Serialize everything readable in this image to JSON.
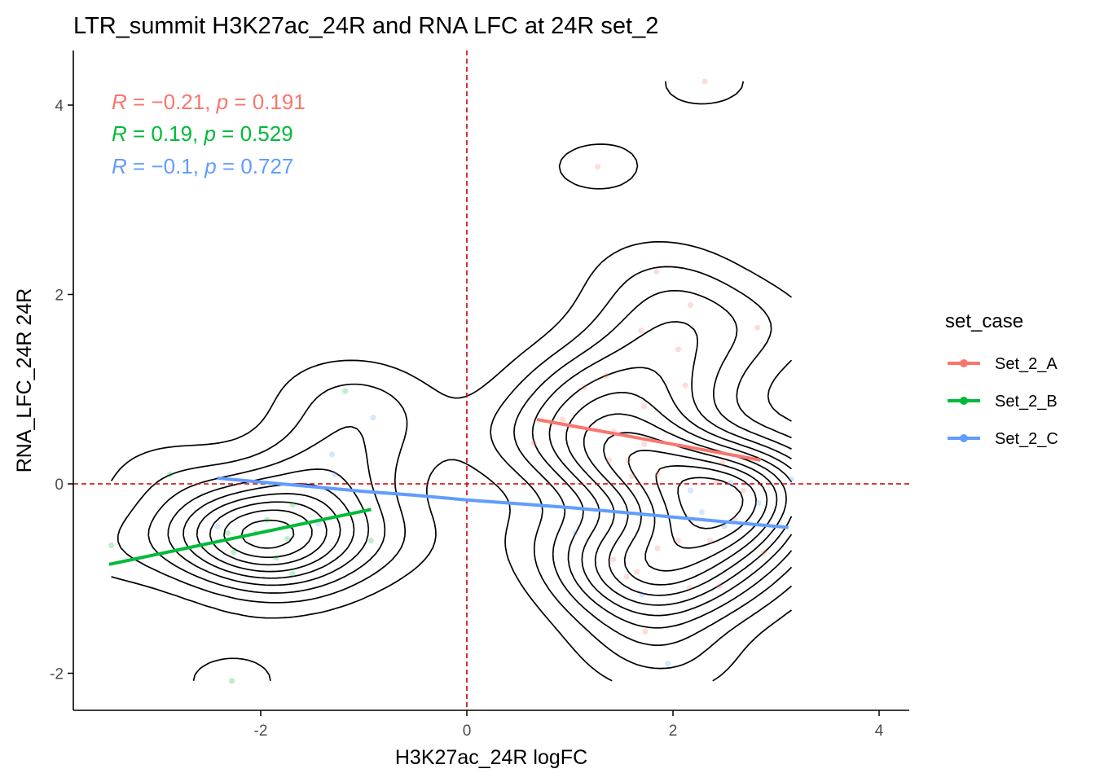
{
  "chart_data": {
    "type": "scatter",
    "title": "LTR_summit H3K27ac_24R and RNA LFC at 24R set_2",
    "xlabel": "H3K27ac_24R logFC",
    "ylabel": "RNA_LFC_24R 24R",
    "xlim": [
      -3.55,
      4.3
    ],
    "ylim": [
      -2.4,
      4.6
    ],
    "xticks": [
      -2,
      0,
      2,
      4
    ],
    "yticks": [
      -2,
      0,
      2,
      4
    ],
    "grid": false,
    "reference_lines": {
      "x": 0,
      "y": 0,
      "color": "#cc0000",
      "style": "dashed"
    },
    "legend": {
      "title": "set_case",
      "position": "right",
      "keys": [
        "Set_2_A",
        "Set_2_B",
        "Set_2_C"
      ]
    },
    "series": [
      {
        "name": "Set_2_A",
        "color": "#F8766D",
        "stats": {
          "R": "−0.21",
          "p": "0.191"
        },
        "fit_line": {
          "x": [
            0.68,
            2.85
          ],
          "y": [
            0.68,
            0.25
          ]
        },
        "points": [
          [
            2.31,
            4.25
          ],
          [
            1.27,
            3.35
          ],
          [
            1.84,
            2.24
          ],
          [
            2.17,
            1.89
          ],
          [
            1.69,
            1.62
          ],
          [
            2.82,
            1.65
          ],
          [
            2.05,
            1.42
          ],
          [
            1.35,
            1.14
          ],
          [
            1.14,
            1.02
          ],
          [
            1.72,
            0.82
          ],
          [
            2.12,
            1.04
          ],
          [
            0.93,
            0.68
          ],
          [
            0.65,
            0.43
          ],
          [
            1.43,
            0.55
          ],
          [
            1.72,
            0.42
          ],
          [
            1.57,
            0.25
          ],
          [
            1.38,
            0.25
          ],
          [
            1.6,
            0.08
          ],
          [
            1.85,
            0.1
          ],
          [
            2.48,
            0.22
          ],
          [
            2.42,
            0.02
          ],
          [
            2.68,
            -0.07
          ],
          [
            2.6,
            -0.38
          ],
          [
            2.36,
            -0.6
          ],
          [
            1.85,
            -0.68
          ],
          [
            2.05,
            -0.6
          ],
          [
            1.42,
            -0.8
          ],
          [
            1.55,
            -0.98
          ],
          [
            2.16,
            -1.1
          ],
          [
            2.45,
            -1.08
          ],
          [
            2.88,
            -0.73
          ],
          [
            1.73,
            -1.56
          ],
          [
            1.65,
            -0.93
          ]
        ]
      },
      {
        "name": "Set_2_B",
        "color": "#00BA38",
        "stats": {
          "R": "0.19",
          "p": "0.529"
        },
        "fit_line": {
          "x": [
            -3.47,
            -0.93
          ],
          "y": [
            -0.85,
            -0.27
          ]
        },
        "points": [
          [
            -1.18,
            0.98
          ],
          [
            -2.88,
            0.1
          ],
          [
            -3.45,
            -0.65
          ],
          [
            -2.32,
            -0.52
          ],
          [
            -1.69,
            -0.22
          ],
          [
            -1.94,
            -0.38
          ],
          [
            -1.74,
            -0.58
          ],
          [
            -0.93,
            -0.6
          ],
          [
            -2.26,
            -0.72
          ],
          [
            -1.85,
            -0.78
          ],
          [
            -1.69,
            -0.95
          ],
          [
            -2.28,
            -2.08
          ],
          [
            -2.05,
            -0.52
          ]
        ]
      },
      {
        "name": "Set_2_C",
        "color": "#619CFF",
        "stats": {
          "R": "−0.1",
          "p": "0.727"
        },
        "fit_line": {
          "x": [
            -2.42,
            -2.0,
            -1.5,
            -1.0,
            -0.5,
            0.0,
            0.5,
            1.0,
            1.5,
            2.0,
            2.5,
            3.12
          ],
          "y": [
            0.06,
            0.02,
            -0.03,
            -0.08,
            -0.12,
            -0.17,
            -0.21,
            -0.25,
            -0.3,
            -0.35,
            -0.4,
            -0.46
          ]
        },
        "points": [
          [
            -0.91,
            0.7
          ],
          [
            -1.31,
            0.31
          ],
          [
            -1.28,
            0.1
          ],
          [
            -2.42,
            -0.45
          ],
          [
            -1.44,
            -0.42
          ],
          [
            2.17,
            -0.07
          ],
          [
            2.56,
            0.01
          ],
          [
            2.28,
            -0.3
          ],
          [
            2.83,
            -0.2
          ],
          [
            1.7,
            -1.17
          ],
          [
            1.95,
            -1.9
          ],
          [
            2.5,
            -0.45
          ],
          [
            1.05,
            -0.52
          ],
          [
            3.15,
            0.05
          ]
        ]
      }
    ],
    "density_contours": {
      "color": "#000000",
      "levels": 11
    }
  }
}
